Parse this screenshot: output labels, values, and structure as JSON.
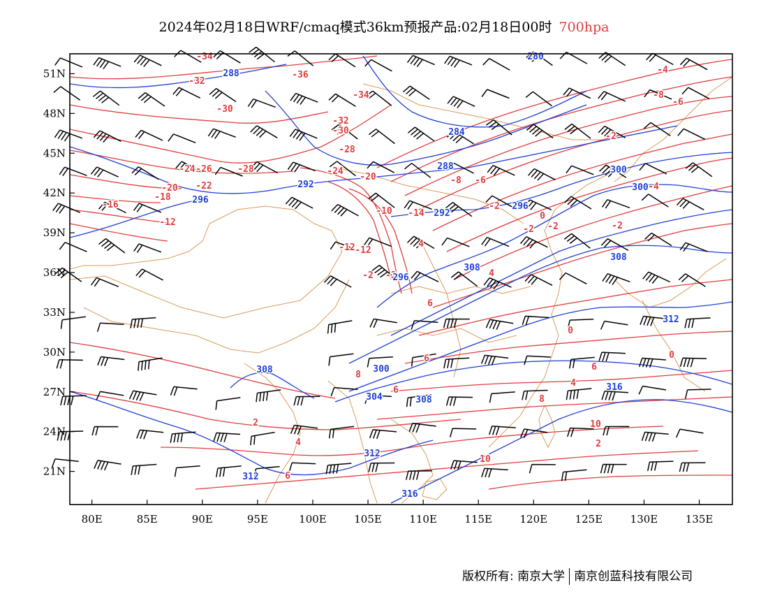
{
  "title": {
    "main": "2024年02月18日WRF/cmaq模式36km预报产品:02月18日00时",
    "level": "700hpa",
    "level_color": "#e03c3c"
  },
  "map": {
    "lon_range": [
      78,
      138
    ],
    "lat_range": [
      18.5,
      52.5
    ],
    "x_ticks": [
      "80E",
      "85E",
      "90E",
      "95E",
      "100E",
      "105E",
      "110E",
      "115E",
      "120E",
      "125E",
      "130E",
      "135E"
    ],
    "y_ticks": [
      "51N",
      "48N",
      "45N",
      "42N",
      "39N",
      "36N",
      "33N",
      "30N",
      "27N",
      "24N",
      "21N"
    ],
    "colors": {
      "temperature": "#e03c3c",
      "height": "#1f3fd6",
      "boundary": "#d99a5a",
      "wind": "#000000"
    }
  },
  "labels": {
    "temperature": [
      "-34",
      "-32",
      "-36",
      "-34",
      "-30",
      "-32",
      "-30",
      "-28",
      "-24",
      "-26",
      "-28",
      "-24",
      "-20",
      "-20",
      "-22",
      "-18",
      "-16",
      "-12",
      "-10",
      "-12",
      "-12",
      "-2",
      "-2",
      "-14",
      "-8",
      "-6",
      "-8",
      "-6",
      "-4",
      "-2",
      "-4",
      "-2",
      "0",
      "-2",
      "-2",
      "-2",
      "4",
      "4",
      "6",
      "6",
      "8",
      "6",
      "0",
      "0",
      "2",
      "4",
      "6",
      "8",
      "10",
      "10",
      "2",
      "4",
      "6"
    ],
    "height": [
      "280",
      "288",
      "284",
      "288",
      "292",
      "296",
      "300",
      "292",
      "300",
      "296",
      "308",
      "308",
      "296",
      "308",
      "300",
      "304",
      "308",
      "312",
      "316",
      "312",
      "312",
      "316"
    ]
  },
  "footer": {
    "left": "版权所有: 南京大学",
    "right": "南京创蓝科技有限公司"
  }
}
